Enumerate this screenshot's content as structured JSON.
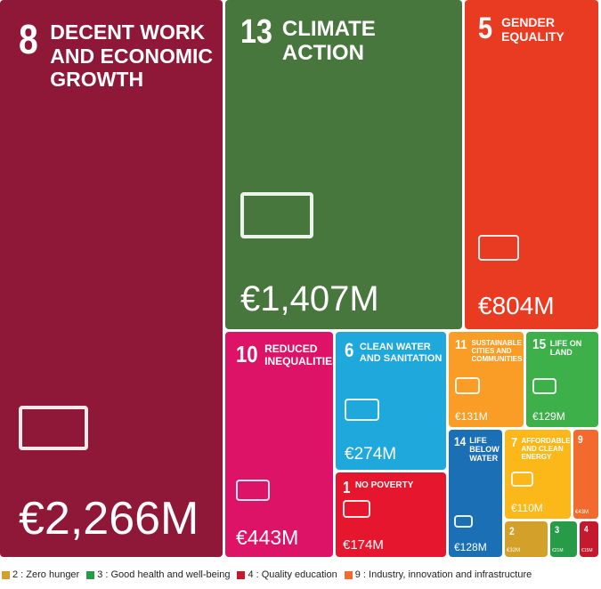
{
  "chart_data": {
    "type": "treemap",
    "tiles": [
      {
        "number": "8",
        "name": "Decent work and economic growth",
        "value": 2266,
        "value_label": "€2,266M",
        "color": "#8f1838"
      },
      {
        "number": "13",
        "name": "Climate action",
        "value": 1407,
        "value_label": "€1,407M",
        "color": "#48773e"
      },
      {
        "number": "5",
        "name": "Gender equality",
        "value": 804,
        "value_label": "€804M",
        "color": "#e83b22"
      },
      {
        "number": "10",
        "name": "Reduced inequalities",
        "value": 443,
        "value_label": "€443M",
        "color": "#dd1367"
      },
      {
        "number": "6",
        "name": "Clean water and sanitation",
        "value": 274,
        "value_label": "€274M",
        "color": "#1ea8dc"
      },
      {
        "number": "1",
        "name": "No poverty",
        "value": 174,
        "value_label": "€174M",
        "color": "#e5162d"
      },
      {
        "number": "11",
        "name": "Sustainable cities and communities",
        "value": 131,
        "value_label": "€131M",
        "color": "#f99d26"
      },
      {
        "number": "15",
        "name": "Life on land",
        "value": 129,
        "value_label": "€129M",
        "color": "#3eb049"
      },
      {
        "number": "14",
        "name": "Life below water",
        "value": 128,
        "value_label": "€128M",
        "color": "#1a6fb5"
      },
      {
        "number": "7",
        "name": "Affordable and clean energy",
        "value": 110,
        "value_label": "€110M",
        "color": "#fbb818"
      },
      {
        "number": "9",
        "value": 43,
        "value_label": "€43M",
        "color": "#f26a2d"
      },
      {
        "number": "2",
        "value": 32,
        "value_label": "€32M",
        "color": "#d3a029"
      },
      {
        "number": "3",
        "value": 21,
        "value_label": "€21M",
        "color": "#279b48"
      },
      {
        "number": "4",
        "value": 15,
        "value_label": "€15M",
        "color": "#c5192d"
      }
    ],
    "legend": [
      {
        "label": "2 : Zero hunger",
        "color": "#d3a029"
      },
      {
        "label": "3 : Good health and well-being",
        "color": "#279b48"
      },
      {
        "label": "4 : Quality education",
        "color": "#c5192d"
      },
      {
        "label": "9 : Industry, innovation and infrastructure",
        "color": "#f26a2d"
      }
    ]
  }
}
